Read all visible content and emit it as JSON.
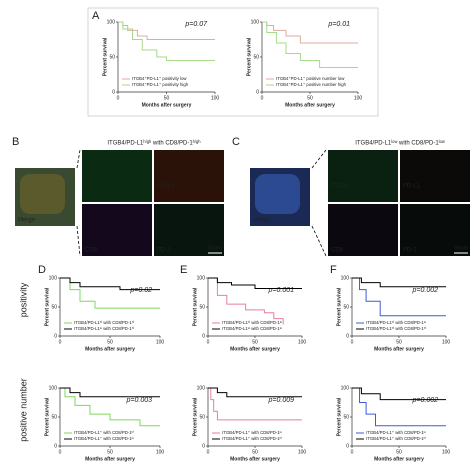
{
  "panel_labels": [
    "A",
    "B",
    "C",
    "D",
    "E",
    "F"
  ],
  "row_labels": [
    "positivity",
    "positive number"
  ],
  "images": [
    {
      "title": "ITGB4/PD-L1ʰⁱᵍʰ with CD8/PD-1ʰⁱᵍʰ",
      "merge": "Merge",
      "tiles": [
        "ITGB4",
        "PD-L1",
        "CD8",
        "PD-1"
      ],
      "scale": "50μm"
    },
    {
      "title": "ITGB4/PD-L1ˡᵒʷ with CD8/PD-1ˡᵒʷ",
      "merge": "Merge",
      "tiles": [
        "ITGB4",
        "PD-L1",
        "CD8",
        "PD-1"
      ],
      "scale": "50μm"
    }
  ],
  "chart_data": [
    {
      "type": "step",
      "annotation": "p=0.07",
      "xlabel": "Months after surgery",
      "ylabel": "Percent survival",
      "xlim": [
        0,
        100
      ],
      "ylim": [
        0,
        100
      ],
      "xticks": [
        0,
        50,
        100
      ],
      "yticks": [
        0,
        50,
        100
      ],
      "series": [
        {
          "name": "ITGB4⁺PD-L1⁺ positivity low",
          "color": "#dcae9e",
          "x": [
            0,
            5,
            10,
            20,
            30,
            100
          ],
          "values": [
            100,
            95,
            88,
            80,
            75,
            75
          ]
        },
        {
          "name": "ITGB4⁺PD-L1⁺ positivity high",
          "color": "#a6d98a",
          "x": [
            0,
            5,
            15,
            25,
            40,
            50,
            100
          ],
          "values": [
            100,
            90,
            75,
            60,
            50,
            45,
            45
          ]
        }
      ]
    },
    {
      "type": "step",
      "annotation": "p=0.01",
      "xlabel": "Months after surgery",
      "ylabel": "Percent survival",
      "xlim": [
        0,
        100
      ],
      "ylim": [
        0,
        100
      ],
      "xticks": [
        0,
        50,
        100
      ],
      "yticks": [
        0,
        50,
        100
      ],
      "series": [
        {
          "name": "ITGB4⁺PD-L1⁺ positive number low",
          "color": "#dcae9e",
          "x": [
            0,
            5,
            12,
            25,
            40,
            100
          ],
          "values": [
            100,
            95,
            88,
            80,
            70,
            70
          ]
        },
        {
          "name": "ITGB4⁺PD-L1⁺ positive number high",
          "color": "#a6d98a",
          "x": [
            0,
            5,
            15,
            25,
            40,
            60,
            100
          ],
          "values": [
            100,
            85,
            70,
            55,
            45,
            35,
            35
          ]
        }
      ]
    },
    {
      "type": "step",
      "annotation": "p=0.02",
      "xlabel": "Months after surgery",
      "ylabel": "Percent survival",
      "xlim": [
        0,
        100
      ],
      "ylim": [
        0,
        100
      ],
      "xticks": [
        0,
        50,
        100
      ],
      "yticks": [
        0,
        50,
        100
      ],
      "series": [
        {
          "name": "ITGB4/PD-L1ʰⁱ with CD8/PD-1ʰⁱ",
          "color": "#7fd858",
          "x": [
            0,
            10,
            20,
            35,
            100
          ],
          "values": [
            100,
            80,
            60,
            48,
            48
          ]
        },
        {
          "name": "ITGB4/PD-L1ˡᵒ with CD8/PD-1ʰⁱ",
          "color": "#000000",
          "x": [
            0,
            10,
            20,
            60,
            100
          ],
          "values": [
            100,
            92,
            85,
            80,
            80
          ]
        }
      ]
    },
    {
      "type": "step",
      "annotation": "p=0.001",
      "xlabel": "Months after surgery",
      "ylabel": "Percent survival",
      "xlim": [
        0,
        100
      ],
      "ylim": [
        0,
        100
      ],
      "xticks": [
        0,
        50,
        100
      ],
      "yticks": [
        0,
        50,
        100
      ],
      "series": [
        {
          "name": "ITGB4/PD-L1ʰⁱ with CD8/PD-1ˡᵒ",
          "color": "#e87ea3",
          "x": [
            0,
            10,
            20,
            40,
            60,
            70,
            80
          ],
          "values": [
            100,
            70,
            55,
            45,
            40,
            30,
            20
          ]
        },
        {
          "name": "ITGB4/PD-L1ˡᵒ with CD8/PD-1ˡᵒ",
          "color": "#000000",
          "x": [
            0,
            10,
            25,
            50,
            100
          ],
          "values": [
            100,
            92,
            88,
            82,
            82
          ]
        }
      ]
    },
    {
      "type": "step",
      "annotation": "p=0.002",
      "xlabel": "Months after surgery",
      "ylabel": "Percent survival",
      "xlim": [
        0,
        100
      ],
      "ylim": [
        0,
        100
      ],
      "xticks": [
        0,
        50,
        100
      ],
      "yticks": [
        0,
        50,
        100
      ],
      "series": [
        {
          "name": "ITGB4/PD-L1ʰⁱ with CD8/PD-1ˡᵒ",
          "color": "#3f5bd8",
          "x": [
            0,
            8,
            15,
            30,
            100
          ],
          "values": [
            100,
            80,
            60,
            35,
            35
          ]
        },
        {
          "name": "ITGB4/PD-L1ʰⁱ with CD8/PD-1ʰⁱ",
          "color": "#000000",
          "x": [
            0,
            10,
            30,
            100
          ],
          "values": [
            100,
            92,
            85,
            85
          ]
        }
      ]
    },
    {
      "type": "step",
      "annotation": "p=0.003",
      "xlabel": "Months after surgery",
      "ylabel": "Percent survival",
      "xlim": [
        0,
        100
      ],
      "ylim": [
        0,
        100
      ],
      "xticks": [
        0,
        50,
        100
      ],
      "yticks": [
        0,
        50,
        100
      ],
      "series": [
        {
          "name": "ITGB4/PD-L1⁺ with CD8/PD-1ʰⁱ",
          "color": "#7fd858",
          "x": [
            0,
            5,
            15,
            30,
            50,
            80,
            100
          ],
          "values": [
            100,
            85,
            70,
            55,
            45,
            35,
            35
          ]
        },
        {
          "name": "ITGB4/PD-L1⁺ with CD8/PD-1ˡᵒ",
          "color": "#000000",
          "x": [
            0,
            10,
            20,
            100
          ],
          "values": [
            100,
            92,
            85,
            85
          ]
        }
      ]
    },
    {
      "type": "step",
      "annotation": "p=0.009",
      "xlabel": "Months after surgery",
      "ylabel": "Percent survival",
      "xlim": [
        0,
        100
      ],
      "ylim": [
        0,
        100
      ],
      "xticks": [
        0,
        50,
        100
      ],
      "yticks": [
        0,
        50,
        100
      ],
      "series": [
        {
          "name": "ITGB4/PD-L1⁺ with CD8/PD-1ˡᵒ",
          "color": "#e87ea3",
          "x": [
            0,
            3,
            6,
            10,
            100
          ],
          "values": [
            100,
            80,
            60,
            45,
            45
          ]
        },
        {
          "name": "ITGB4/PD-L1⁺ with CD8/PD-1ʰⁱ",
          "color": "#000000",
          "x": [
            0,
            10,
            20,
            100
          ],
          "values": [
            100,
            92,
            85,
            85
          ]
        }
      ]
    },
    {
      "type": "step",
      "annotation": "p=0.002",
      "xlabel": "Months after surgery",
      "ylabel": "Percent survival",
      "xlim": [
        0,
        100
      ],
      "ylim": [
        0,
        100
      ],
      "xticks": [
        0,
        50,
        100
      ],
      "yticks": [
        0,
        50,
        100
      ],
      "series": [
        {
          "name": "ITGB4/PD-L1⁺ with CD8/PD-1ˡᵒ",
          "color": "#3f5bd8",
          "x": [
            0,
            8,
            15,
            25,
            100
          ],
          "values": [
            100,
            75,
            55,
            35,
            35
          ]
        },
        {
          "name": "ITGB4/PD-L1⁺ with CD8/PD-1ʰⁱ",
          "color": "#000000",
          "x": [
            0,
            10,
            30,
            100
          ],
          "values": [
            100,
            90,
            80,
            80
          ]
        }
      ]
    }
  ]
}
